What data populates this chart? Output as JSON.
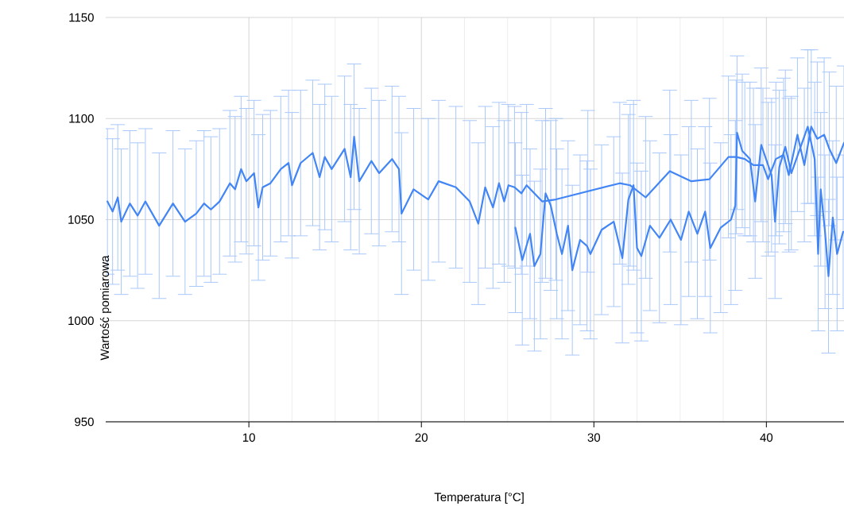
{
  "chart_data": {
    "type": "line",
    "xlabel": "Temperatura [°C]",
    "ylabel": "Wartość pomiarowa",
    "xlim": [
      1.7,
      44.5
    ],
    "ylim": [
      950,
      1150
    ],
    "xticks": [
      10,
      20,
      30,
      40
    ],
    "yticks": [
      950,
      1000,
      1050,
      1100,
      1150
    ],
    "grid": true,
    "series": [
      {
        "color": "#4285f4",
        "x": [
          1.8,
          2.1,
          2.4,
          2.6,
          3.1,
          3.55,
          4.0,
          4.8,
          5.6,
          6.3,
          6.95,
          7.4,
          7.8,
          8.3,
          8.9,
          9.2,
          9.55,
          9.85,
          10.3,
          10.55,
          10.8,
          11.25,
          11.85,
          12.3,
          12.5,
          13.0,
          13.7,
          14.1,
          14.4,
          14.8,
          15.55,
          15.9,
          16.1,
          16.4,
          17.1,
          17.55,
          18.3,
          18.7,
          18.85,
          19.55,
          20.4,
          21.0,
          22.0,
          22.8,
          23.3,
          23.7,
          24.15,
          24.5,
          24.8,
          25.05,
          25.4,
          25.8,
          26.1,
          27.0,
          27.8,
          29.65,
          31.5,
          32.1,
          33.0,
          34.4,
          35.65,
          36.7,
          37.8,
          38.25,
          38.75,
          39.25,
          39.8,
          40.1,
          40.55,
          41.0,
          41.3,
          41.8,
          42.2,
          42.6,
          42.95,
          43.35,
          43.65,
          44.05,
          44.5
        ],
        "values": [
          1059,
          1054,
          1061,
          1049,
          1058,
          1052,
          1059,
          1047,
          1058,
          1049,
          1053,
          1058,
          1055,
          1059,
          1068,
          1065,
          1075,
          1069,
          1073,
          1056,
          1066,
          1068,
          1075,
          1078,
          1067,
          1078,
          1083,
          1071,
          1081,
          1075,
          1085,
          1071,
          1091,
          1069,
          1079,
          1073,
          1080,
          1075,
          1053,
          1065,
          1060,
          1069,
          1066,
          1059,
          1048,
          1066,
          1056,
          1068,
          1059,
          1067,
          1066,
          1063,
          1067,
          1059,
          1060,
          1064,
          1068,
          1067,
          1061,
          1074,
          1069,
          1070,
          1081,
          1081,
          1080,
          1077,
          1077,
          1070,
          1080,
          1082,
          1072,
          1092,
          1077,
          1096,
          1090,
          1092,
          1085,
          1078,
          1088
        ],
        "errors": [
          36,
          36,
          36,
          36,
          36,
          36,
          36,
          36,
          36,
          36,
          36,
          36,
          36,
          36,
          36,
          36,
          36,
          36,
          36,
          36,
          36,
          36,
          36,
          36,
          36,
          36,
          36,
          36,
          36,
          36,
          36,
          36,
          36,
          36,
          36,
          36,
          36,
          36,
          40,
          40,
          40,
          40,
          40,
          40,
          40,
          40,
          40,
          40,
          40,
          40,
          40,
          40,
          40,
          40,
          40,
          40,
          40,
          40,
          40,
          40,
          40,
          40,
          40,
          38,
          38,
          38,
          38,
          38,
          38,
          38,
          38,
          38,
          38,
          38,
          38,
          38,
          38,
          38,
          38
        ]
      },
      {
        "color": "#4285f4",
        "x": [
          25.45,
          25.85,
          26.3,
          26.55,
          26.9,
          27.2,
          27.5,
          27.85,
          28.15,
          28.5,
          28.75,
          29.2,
          29.6,
          29.8,
          30.45,
          31.15,
          31.65,
          32.0,
          32.3,
          32.5,
          32.75,
          33.25,
          33.8,
          34.45,
          35.05,
          35.5,
          36.0,
          36.45,
          36.75,
          37.35,
          37.95,
          38.2,
          38.3,
          38.6,
          39.05,
          39.35,
          39.7,
          40.3,
          40.5,
          40.75,
          41.1,
          41.45,
          42.4,
          42.8,
          43.0,
          43.15,
          43.4,
          43.6,
          43.85,
          44.1,
          44.45
        ],
        "values": [
          1046,
          1030,
          1043,
          1027,
          1033,
          1063,
          1057,
          1043,
          1033,
          1047,
          1025,
          1040,
          1037,
          1033,
          1045,
          1049,
          1031,
          1060,
          1067,
          1036,
          1032,
          1047,
          1041,
          1050,
          1040,
          1054,
          1043,
          1054,
          1036,
          1046,
          1050,
          1057,
          1093,
          1084,
          1080,
          1059,
          1087,
          1072,
          1049,
          1076,
          1086,
          1073,
          1096,
          1080,
          1033,
          1065,
          1044,
          1022,
          1051,
          1033,
          1044
        ],
        "errors": [
          42,
          42,
          42,
          42,
          42,
          42,
          42,
          42,
          42,
          42,
          42,
          42,
          42,
          42,
          42,
          42,
          42,
          42,
          42,
          42,
          42,
          42,
          42,
          42,
          42,
          42,
          42,
          42,
          42,
          42,
          42,
          42,
          38,
          38,
          38,
          38,
          38,
          38,
          38,
          38,
          38,
          38,
          38,
          38,
          38,
          38,
          38,
          38,
          38,
          38,
          38
        ]
      }
    ]
  }
}
